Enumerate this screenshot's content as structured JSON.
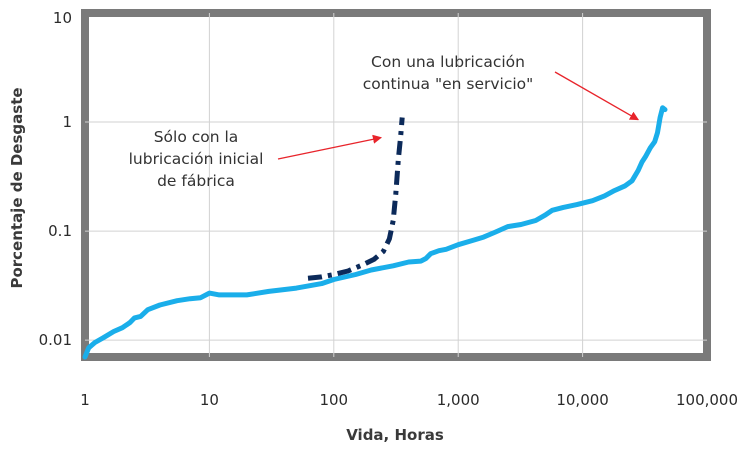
{
  "chart_data": {
    "type": "line",
    "title": "",
    "xlabel": "Vida, Horas",
    "ylabel": "Porcentaje de Desgaste",
    "xscale": "log",
    "yscale": "log",
    "xlim": [
      1,
      100000
    ],
    "ylim": [
      0.007,
      10
    ],
    "x_ticks": [
      {
        "value": 1,
        "label": "1"
      },
      {
        "value": 10,
        "label": "10"
      },
      {
        "value": 100,
        "label": "100"
      },
      {
        "value": 1000,
        "label": "1,000"
      },
      {
        "value": 10000,
        "label": "10,000"
      },
      {
        "value": 100000,
        "label": "100,000"
      }
    ],
    "y_ticks": [
      {
        "value": 10,
        "label": "10"
      },
      {
        "value": 1,
        "label": "1"
      },
      {
        "value": 0.1,
        "label": "0.1"
      },
      {
        "value": 0.01,
        "label": "0.01"
      }
    ],
    "grid": true,
    "series": [
      {
        "color": "#1aaeea",
        "style": "solid",
        "points": [
          [
            1,
            0.007
          ],
          [
            1.07,
            0.0085
          ],
          [
            1.2,
            0.0095
          ],
          [
            1.4,
            0.0105
          ],
          [
            1.7,
            0.012
          ],
          [
            2.0,
            0.013
          ],
          [
            2.3,
            0.0145
          ],
          [
            2.5,
            0.016
          ],
          [
            2.8,
            0.0165
          ],
          [
            3.2,
            0.019
          ],
          [
            4.0,
            0.021
          ],
          [
            5.5,
            0.023
          ],
          [
            7.0,
            0.024
          ],
          [
            8.5,
            0.0245
          ],
          [
            10,
            0.027
          ],
          [
            12,
            0.026
          ],
          [
            15,
            0.026
          ],
          [
            20,
            0.026
          ],
          [
            30,
            0.028
          ],
          [
            50,
            0.03
          ],
          [
            80,
            0.033
          ],
          [
            100,
            0.036
          ],
          [
            150,
            0.04
          ],
          [
            200,
            0.044
          ],
          [
            300,
            0.048
          ],
          [
            400,
            0.052
          ],
          [
            500,
            0.053
          ],
          [
            550,
            0.056
          ],
          [
            600,
            0.062
          ],
          [
            700,
            0.066
          ],
          [
            800,
            0.068
          ],
          [
            1000,
            0.075
          ],
          [
            1300,
            0.082
          ],
          [
            1600,
            0.088
          ],
          [
            2000,
            0.098
          ],
          [
            2500,
            0.11
          ],
          [
            3200,
            0.115
          ],
          [
            4200,
            0.125
          ],
          [
            5000,
            0.14
          ],
          [
            5700,
            0.155
          ],
          [
            7000,
            0.165
          ],
          [
            9000,
            0.175
          ],
          [
            12000,
            0.19
          ],
          [
            15000,
            0.21
          ],
          [
            18000,
            0.235
          ],
          [
            22000,
            0.26
          ],
          [
            25000,
            0.29
          ],
          [
            28000,
            0.36
          ],
          [
            30000,
            0.43
          ],
          [
            32000,
            0.48
          ],
          [
            35000,
            0.58
          ],
          [
            38000,
            0.66
          ],
          [
            40000,
            0.8
          ],
          [
            42000,
            1.1
          ],
          [
            44000,
            1.35
          ],
          [
            46000,
            1.3
          ]
        ]
      },
      {
        "color": "#0c2a5a",
        "style": "dash-dot",
        "points": [
          [
            62,
            0.037
          ],
          [
            80,
            0.038
          ],
          [
            100,
            0.04
          ],
          [
            130,
            0.043
          ],
          [
            170,
            0.049
          ],
          [
            210,
            0.055
          ],
          [
            250,
            0.065
          ],
          [
            280,
            0.085
          ],
          [
            300,
            0.125
          ],
          [
            315,
            0.22
          ],
          [
            330,
            0.45
          ],
          [
            345,
            0.75
          ],
          [
            355,
            1.1
          ]
        ]
      }
    ],
    "annotations": [
      {
        "id": "continuous",
        "lines": [
          "Con una lubricación",
          "continua \"en servicio\""
        ],
        "arrow_color": "#e8242b",
        "target": [
          28000,
          1.05
        ]
      },
      {
        "id": "initial",
        "lines": [
          "Sólo con la",
          "lubricación inicial",
          "de fábrica"
        ],
        "arrow_color": "#e8242b",
        "target": [
          240,
          0.72
        ]
      }
    ]
  }
}
